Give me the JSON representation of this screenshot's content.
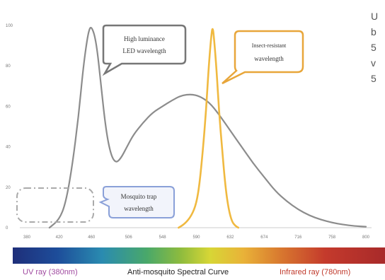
{
  "chart_data": {
    "type": "line",
    "title": "",
    "xlabel": "",
    "ylabel": "",
    "x_ticks": [
      380,
      420,
      460,
      506,
      548,
      590,
      632,
      674,
      716,
      758,
      800
    ],
    "y_ticks": [
      0,
      20,
      40,
      60,
      80,
      100
    ],
    "xlim": [
      380,
      800
    ],
    "ylim": [
      0,
      100
    ],
    "grid": false,
    "series": [
      {
        "color": "#8c8c8c",
        "points": [
          [
            408,
            0
          ],
          [
            420,
            4
          ],
          [
            428,
            12
          ],
          [
            436,
            30
          ],
          [
            444,
            55
          ],
          [
            450,
            80
          ],
          [
            456,
            97
          ],
          [
            460,
            100
          ],
          [
            466,
            92
          ],
          [
            472,
            70
          ],
          [
            478,
            48
          ],
          [
            484,
            36
          ],
          [
            490,
            32
          ],
          [
            496,
            34
          ],
          [
            504,
            40
          ],
          [
            512,
            46
          ],
          [
            524,
            52
          ],
          [
            536,
            57
          ],
          [
            548,
            60
          ],
          [
            560,
            63
          ],
          [
            572,
            65.5
          ],
          [
            584,
            66
          ],
          [
            594,
            65
          ],
          [
            606,
            62
          ],
          [
            618,
            56
          ],
          [
            632,
            48
          ],
          [
            646,
            40
          ],
          [
            660,
            32
          ],
          [
            674,
            25
          ],
          [
            688,
            18
          ],
          [
            702,
            13
          ],
          [
            716,
            9
          ],
          [
            730,
            6
          ],
          [
            744,
            4
          ],
          [
            758,
            2.5
          ],
          [
            772,
            1.5
          ],
          [
            786,
            0.8
          ],
          [
            800,
            0.5
          ]
        ]
      },
      {
        "color": "#f0b940",
        "points": [
          [
            568,
            0
          ],
          [
            576,
            2
          ],
          [
            584,
            6
          ],
          [
            590,
            12
          ],
          [
            594,
            22
          ],
          [
            598,
            38
          ],
          [
            602,
            58
          ],
          [
            605,
            78
          ],
          [
            608,
            93
          ],
          [
            610,
            100
          ],
          [
            612,
            93
          ],
          [
            615,
            78
          ],
          [
            618,
            58
          ],
          [
            622,
            38
          ],
          [
            626,
            20
          ],
          [
            630,
            9
          ],
          [
            634,
            3
          ],
          [
            638,
            1
          ],
          [
            642,
            0
          ]
        ]
      }
    ],
    "annotations": [
      {
        "lines": [
          "High luminance",
          "LED wavelength"
        ],
        "border_color": "#777777"
      },
      {
        "lines": [
          "Insect-resistant",
          "wavelength"
        ],
        "border_color": "#e8a63a"
      },
      {
        "lines": [
          "Mosquito trap",
          "wavelength"
        ],
        "border_color": "#8aa0d8"
      }
    ]
  },
  "side_text": [
    "U",
    "b",
    "5",
    "v",
    "5"
  ],
  "spectrum_bar": {
    "uv_label": "UV ray (380nm)",
    "center_label": "Anti-mosquito Spectral Curve",
    "ir_label": "Infrared ray (780nm)"
  }
}
